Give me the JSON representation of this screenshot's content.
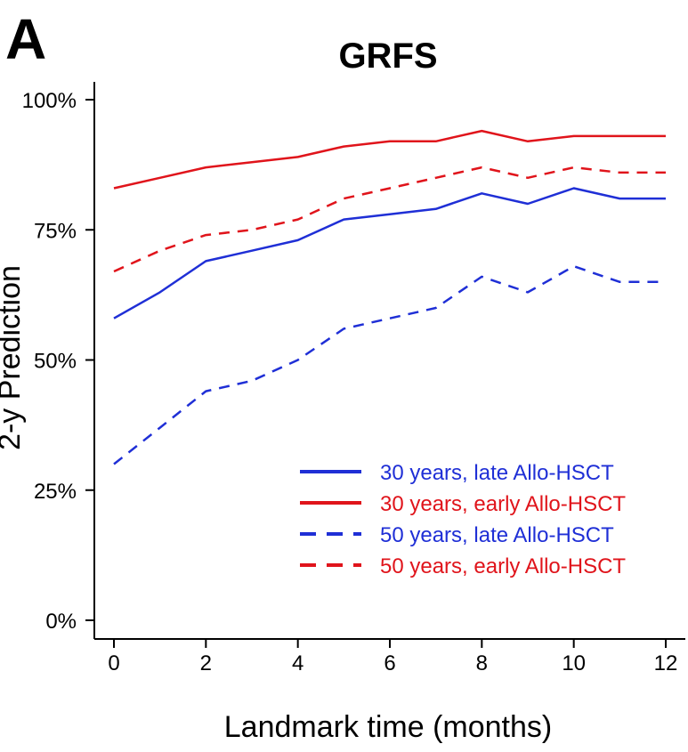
{
  "panel_label": "A",
  "chart_data": {
    "type": "line",
    "title": "GRFS",
    "xlabel": "Landmark time (months)",
    "ylabel": "2-y Prediction",
    "xlim": [
      0,
      12
    ],
    "ylim": [
      0,
      1
    ],
    "x_ticks": [
      0,
      2,
      4,
      6,
      8,
      10,
      12
    ],
    "x_tick_labels": [
      "0",
      "2",
      "4",
      "6",
      "8",
      "10",
      "12"
    ],
    "y_ticks": [
      0,
      0.25,
      0.5,
      0.75,
      1.0
    ],
    "y_tick_labels": [
      "0%",
      "25%",
      "50%",
      "75%",
      "100%"
    ],
    "grid": false,
    "legend_position": "bottom-right",
    "x": [
      0,
      1,
      2,
      3,
      4,
      5,
      6,
      7,
      8,
      9,
      10,
      11,
      12
    ],
    "series": [
      {
        "name": "30 years, late Allo-HSCT",
        "color": "#1f2fd6",
        "style": "solid",
        "values": [
          0.58,
          0.63,
          0.69,
          0.71,
          0.73,
          0.77,
          0.78,
          0.79,
          0.82,
          0.8,
          0.83,
          0.81,
          0.81
        ]
      },
      {
        "name": "30 years, early Allo-HSCT",
        "color": "#e0141b",
        "style": "solid",
        "values": [
          0.83,
          0.85,
          0.87,
          0.88,
          0.89,
          0.91,
          0.92,
          0.92,
          0.94,
          0.92,
          0.93,
          0.93,
          0.93
        ]
      },
      {
        "name": "50 years, late Allo-HSCT",
        "color": "#1f2fd6",
        "style": "dashed",
        "values": [
          0.3,
          0.37,
          0.44,
          0.46,
          0.5,
          0.56,
          0.58,
          0.6,
          0.66,
          0.63,
          0.68,
          0.65,
          0.65
        ]
      },
      {
        "name": "50 years, early Allo-HSCT",
        "color": "#e0141b",
        "style": "dashed",
        "values": [
          0.67,
          0.71,
          0.74,
          0.75,
          0.77,
          0.81,
          0.83,
          0.85,
          0.87,
          0.85,
          0.87,
          0.86,
          0.86
        ]
      }
    ]
  }
}
